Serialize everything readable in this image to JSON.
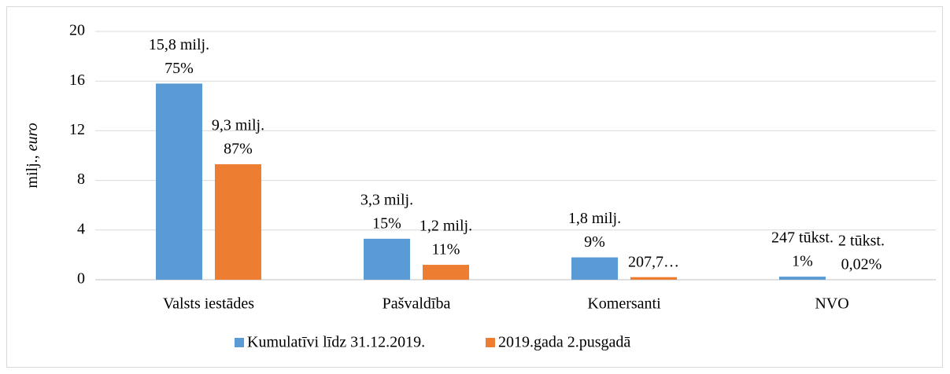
{
  "chart_data": {
    "type": "bar",
    "ylabel": [
      "milj.,",
      "euro"
    ],
    "categories": [
      "Valsts iestādes",
      "Pašvaldība",
      "Komersanti",
      "NVO"
    ],
    "series": [
      {
        "name": "Kumulatīvi līdz 31.12.2019.",
        "color": "#5b9bd5",
        "values": [
          15.8,
          3.3,
          1.8,
          0.247
        ],
        "value_labels": [
          "15,8 milj.",
          "3,3 milj.",
          "1,8 milj.",
          "247 tūkst."
        ],
        "share_labels": [
          "75%",
          "15%",
          "9%",
          "1%"
        ]
      },
      {
        "name": "2019.gada 2.pusgadā",
        "color": "#ed7d31",
        "values": [
          9.3,
          1.2,
          0.2077,
          0.002
        ],
        "value_labels": [
          "9,3 milj.",
          "1,2 milj.",
          "207,7…",
          "2 tūkst."
        ],
        "share_labels": [
          "87%",
          "11%",
          null,
          "0,02%"
        ]
      }
    ],
    "ylim": [
      0,
      20
    ],
    "yticks": [
      0,
      4,
      8,
      12,
      16,
      20
    ],
    "grid": true,
    "legend": "bottom"
  }
}
